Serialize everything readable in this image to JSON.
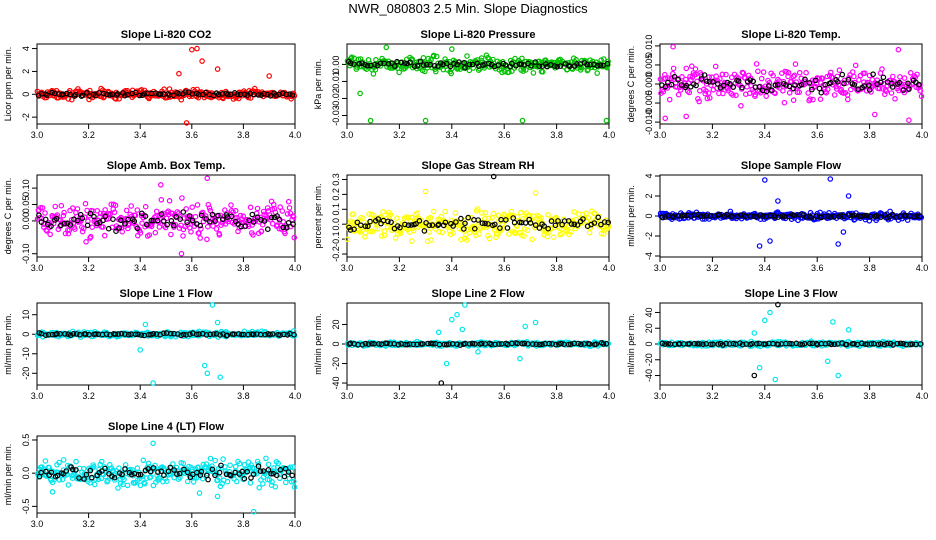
{
  "title": "NWR_080803  2.5 Min. Slope Diagnostics",
  "chart_data": [
    {
      "type": "scatter",
      "title": "Slope Li-820 CO2",
      "xlabel": "",
      "ylabel": "Licor ppm per min.",
      "xlim": [
        3.0,
        4.0
      ],
      "ylim": [
        -2.6,
        4.4
      ],
      "xticks": [
        "3.0",
        "3.2",
        "3.4",
        "3.6",
        "3.8",
        "4.0"
      ],
      "yticks": [
        "-2",
        "0",
        "2",
        "4"
      ],
      "ytick_values": [
        -2,
        0,
        2,
        4
      ],
      "series": [
        {
          "color": "#ff0000",
          "spread": 0.35,
          "spikes": [
            [
              3.6,
              3.9
            ],
            [
              3.62,
              4.0
            ],
            [
              3.58,
              -2.5
            ],
            [
              3.7,
              2.2
            ],
            [
              3.64,
              2.9
            ],
            [
              3.9,
              1.6
            ],
            [
              3.55,
              1.8
            ]
          ]
        },
        {
          "color": "#000000",
          "spread": 0.15,
          "spikes": []
        }
      ]
    },
    {
      "type": "scatter",
      "title": "Slope Li-820 Pressure",
      "xlabel": "",
      "ylabel": "kPa per min.",
      "xlim": [
        3.0,
        4.0
      ],
      "ylim": [
        -0.035,
        0.012
      ],
      "xticks": [
        "3.0",
        "3.2",
        "3.4",
        "3.6",
        "3.8",
        "4.0"
      ],
      "yticks": [
        "-0.03",
        "-0.02",
        "-0.01",
        "0.00"
      ],
      "ytick_values": [
        -0.03,
        -0.02,
        -0.01,
        0.0
      ],
      "series": [
        {
          "color": "#00c000",
          "spread": 0.004,
          "spikes": [
            [
              3.09,
              -0.033
            ],
            [
              3.3,
              -0.033
            ],
            [
              3.67,
              -0.033
            ],
            [
              3.99,
              -0.033
            ],
            [
              3.05,
              -0.017
            ],
            [
              3.15,
              0.01
            ],
            [
              3.4,
              0.009
            ]
          ]
        },
        {
          "color": "#000000",
          "spread": 0.0015,
          "spikes": []
        }
      ]
    },
    {
      "type": "scatter",
      "title": "Slope Li-820 Temp.",
      "xlabel": "",
      "ylabel": "degrees C per min.",
      "xlim": [
        3.0,
        4.0
      ],
      "ylim": [
        -0.0105,
        0.0105
      ],
      "xticks": [
        "3.0",
        "3.2",
        "3.4",
        "3.6",
        "3.8",
        "4.0"
      ],
      "yticks": [
        "-0.010",
        "-0.005",
        "0.000",
        "0.005",
        "0.010"
      ],
      "ytick_values": [
        -0.01,
        -0.005,
        0.0,
        0.005,
        0.01
      ],
      "series": [
        {
          "color": "#ff00ff",
          "spread": 0.004,
          "spikes": [
            [
              3.05,
              0.0098
            ],
            [
              3.1,
              -0.0085
            ],
            [
              3.95,
              -0.0095
            ],
            [
              3.91,
              0.009
            ],
            [
              3.82,
              -0.008
            ],
            [
              3.02,
              -0.009
            ]
          ]
        },
        {
          "color": "#000000",
          "spread": 0.002,
          "spikes": []
        }
      ]
    },
    {
      "type": "scatter",
      "title": "Slope Amb. Box Temp.",
      "xlabel": "",
      "ylabel": "degrees C per min.",
      "xlim": [
        3.0,
        4.0
      ],
      "ylim": [
        -0.11,
        0.14
      ],
      "xticks": [
        "3.0",
        "3.2",
        "3.4",
        "3.6",
        "3.8",
        "4.0"
      ],
      "yticks": [
        "-0.10",
        "0.00",
        "0.05",
        "0.10"
      ],
      "ytick_values": [
        -0.1,
        0.0,
        0.05,
        0.1
      ],
      "series": [
        {
          "color": "#ff00ff",
          "spread": 0.05,
          "spikes": [
            [
              3.66,
              0.13
            ],
            [
              3.56,
              -0.1
            ],
            [
              3.48,
              0.11
            ]
          ]
        },
        {
          "color": "#000000",
          "spread": 0.025,
          "spikes": []
        }
      ]
    },
    {
      "type": "scatter",
      "title": "Slope Gas Stream RH",
      "xlabel": "",
      "ylabel": "percent per min.",
      "xlim": [
        3.0,
        4.0
      ],
      "ylim": [
        -0.22,
        0.33
      ],
      "xticks": [
        "3.0",
        "3.2",
        "3.4",
        "3.6",
        "3.8",
        "4.0"
      ],
      "yticks": [
        "-0.2",
        "-0.1",
        "0.0",
        "0.1",
        "0.2",
        "0.3"
      ],
      "ytick_values": [
        -0.2,
        -0.1,
        0.0,
        0.1,
        0.2,
        0.3
      ],
      "series": [
        {
          "color": "#ffff00",
          "spread": 0.09,
          "spikes": [
            [
              3.3,
              0.22
            ],
            [
              3.72,
              0.21
            ]
          ]
        },
        {
          "color": "#000000",
          "spread": 0.04,
          "spikes": [
            [
              3.56,
              0.32
            ]
          ]
        }
      ]
    },
    {
      "type": "scatter",
      "title": "Slope Sample Flow",
      "xlabel": "",
      "ylabel": "ml/min per min.",
      "xlim": [
        3.0,
        4.0
      ],
      "ylim": [
        -4.1,
        4.1
      ],
      "xticks": [
        "3.0",
        "3.2",
        "3.4",
        "3.6",
        "3.8",
        "4.0"
      ],
      "yticks": [
        "-4",
        "-2",
        "0",
        "2",
        "4"
      ],
      "ytick_values": [
        -4,
        -2,
        0,
        2,
        4
      ],
      "series": [
        {
          "color": "#0000ff",
          "spread": 0.35,
          "spikes": [
            [
              3.4,
              3.6
            ],
            [
              3.65,
              3.7
            ],
            [
              3.42,
              -2.5
            ],
            [
              3.38,
              -3.0
            ],
            [
              3.68,
              -2.8
            ],
            [
              3.72,
              2.0
            ],
            [
              3.45,
              1.5
            ],
            [
              3.7,
              -1.6
            ]
          ]
        },
        {
          "color": "#000000",
          "spread": 0.15,
          "spikes": []
        }
      ]
    },
    {
      "type": "scatter",
      "title": "Slope Line 1 Flow",
      "xlabel": "",
      "ylabel": "ml/min per min.",
      "xlim": [
        3.0,
        4.0
      ],
      "ylim": [
        -26,
        16
      ],
      "xticks": [
        "3.0",
        "3.2",
        "3.4",
        "3.6",
        "3.8",
        "4.0"
      ],
      "yticks": [
        "-20",
        "-10",
        "0",
        "10"
      ],
      "ytick_values": [
        -20,
        -10,
        0,
        10
      ],
      "series": [
        {
          "color": "#00e5ee",
          "spread": 1.2,
          "spikes": [
            [
              3.45,
              -25
            ],
            [
              3.68,
              15
            ],
            [
              3.66,
              -20
            ],
            [
              3.65,
              -16
            ],
            [
              3.7,
              6
            ],
            [
              3.42,
              5
            ],
            [
              3.4,
              -8
            ],
            [
              3.71,
              -22
            ]
          ]
        },
        {
          "color": "#000000",
          "spread": 0.6,
          "spikes": []
        }
      ]
    },
    {
      "type": "scatter",
      "title": "Slope Line 2 Flow",
      "xlabel": "",
      "ylabel": "ml/min per min.",
      "xlim": [
        3.0,
        4.0
      ],
      "ylim": [
        -42,
        42
      ],
      "xticks": [
        "3.0",
        "3.2",
        "3.4",
        "3.6",
        "3.8",
        "4.0"
      ],
      "yticks": [
        "-40",
        "-20",
        "0",
        "20"
      ],
      "ytick_values": [
        -40,
        -20,
        0,
        20
      ],
      "series": [
        {
          "color": "#00e5ee",
          "spread": 2.0,
          "spikes": [
            [
              3.42,
              30
            ],
            [
              3.45,
              40
            ],
            [
              3.4,
              25
            ],
            [
              3.38,
              -20
            ],
            [
              3.35,
              12
            ],
            [
              3.68,
              18
            ],
            [
              3.72,
              22
            ],
            [
              3.66,
              -15
            ],
            [
              3.5,
              -8
            ],
            [
              3.44,
              15
            ]
          ]
        },
        {
          "color": "#000000",
          "spread": 1.0,
          "spikes": [
            [
              3.36,
              -40
            ]
          ]
        }
      ]
    },
    {
      "type": "scatter",
      "title": "Slope Line 3 Flow",
      "xlabel": "",
      "ylabel": "ml/min per min.",
      "xlim": [
        3.0,
        4.0
      ],
      "ylim": [
        -52,
        52
      ],
      "xticks": [
        "3.0",
        "3.2",
        "3.4",
        "3.6",
        "3.8",
        "4.0"
      ],
      "yticks": [
        "-40",
        "-20",
        "0",
        "20",
        "40"
      ],
      "ytick_values": [
        -40,
        -20,
        0,
        20,
        40
      ],
      "series": [
        {
          "color": "#00e5ee",
          "spread": 2.5,
          "spikes": [
            [
              3.4,
              30
            ],
            [
              3.44,
              -45
            ],
            [
              3.38,
              -30
            ],
            [
              3.42,
              40
            ],
            [
              3.66,
              28
            ],
            [
              3.68,
              -40
            ],
            [
              3.64,
              -22
            ],
            [
              3.72,
              18
            ],
            [
              3.36,
              14
            ]
          ]
        },
        {
          "color": "#000000",
          "spread": 1.2,
          "spikes": [
            [
              3.45,
              50
            ],
            [
              3.36,
              -40
            ]
          ]
        }
      ]
    },
    {
      "type": "scatter",
      "title": "Slope Line 4 (LT) Flow",
      "xlabel": "",
      "ylabel": "ml/min per min.",
      "xlim": [
        3.0,
        4.0
      ],
      "ylim": [
        -0.6,
        0.56
      ],
      "xticks": [
        "3.0",
        "3.2",
        "3.4",
        "3.6",
        "3.8",
        "4.0"
      ],
      "yticks": [
        "-0.5",
        "0.0",
        "0.5"
      ],
      "ytick_values": [
        -0.5,
        0.0,
        0.5
      ],
      "series": [
        {
          "color": "#00e5ee",
          "spread": 0.17,
          "spikes": [
            [
              3.84,
              -0.58
            ],
            [
              3.63,
              -0.3
            ],
            [
              3.45,
              0.45
            ],
            [
              3.7,
              -0.35
            ],
            [
              3.06,
              -0.28
            ]
          ]
        },
        {
          "color": "#000000",
          "spread": 0.1,
          "spikes": []
        }
      ]
    }
  ]
}
